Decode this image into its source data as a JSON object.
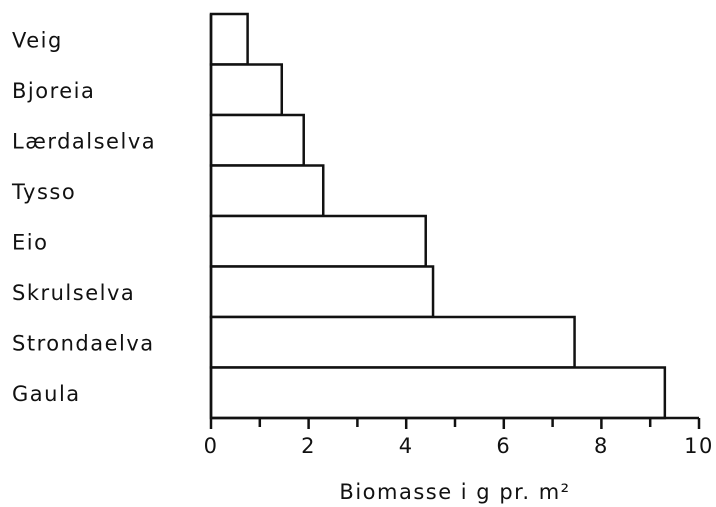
{
  "chart_data": {
    "type": "barh",
    "categories": [
      "Veig",
      "Bjoreia",
      "Lærdalselva",
      "Tysso",
      "Eio",
      "Skrulselva",
      "Strondaelva",
      "Gaula"
    ],
    "values": [
      0.75,
      1.45,
      1.9,
      2.3,
      4.4,
      4.55,
      7.45,
      9.3
    ],
    "color": "#ffffff",
    "xlabel": "Biomasse i g pr. m²",
    "xlim": [
      0,
      10
    ],
    "xticks": [
      0,
      2,
      4,
      6,
      8,
      10
    ],
    "minor_xticks": [
      1,
      3,
      5,
      7,
      9
    ]
  }
}
